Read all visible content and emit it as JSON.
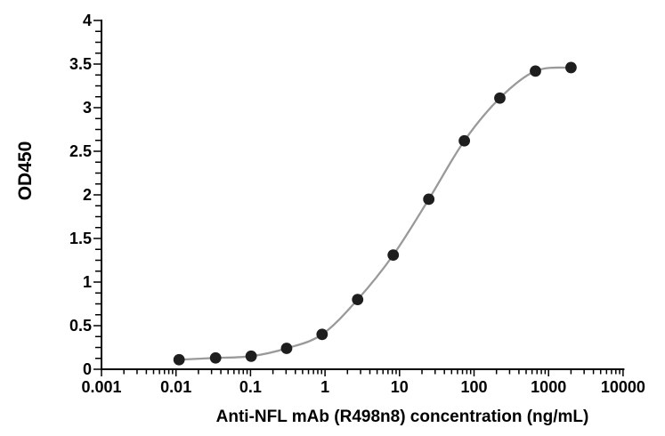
{
  "figure": {
    "background_color": "#ffffff",
    "axis_color": "#000000",
    "text_color": "#000000",
    "curve_color": "#9a9a9a",
    "marker_color": "#1e1e1e"
  },
  "chart_data": {
    "type": "scatter",
    "subtype": "dose-response-fit-curve",
    "title": "",
    "xlabel": "Anti-NFL mAb (R498n8) concentration (ng/mL)",
    "ylabel": "OD450",
    "x_scale": "log10",
    "xlim": [
      0.001,
      10000
    ],
    "ylim": [
      0,
      4
    ],
    "x_tick_values": [
      0.001,
      0.01,
      0.1,
      1,
      10,
      100,
      1000,
      10000
    ],
    "x_tick_labels": [
      "0.001",
      "0.01",
      "0.1",
      "1",
      "10",
      "100",
      "1000",
      "10000"
    ],
    "y_tick_values": [
      0,
      0.5,
      1,
      1.5,
      2,
      2.5,
      3,
      3.5,
      4
    ],
    "y_tick_labels": [
      "0",
      "0.5",
      "1",
      "1.5",
      "2",
      "2.5",
      "3",
      "3.5",
      "4"
    ],
    "y_minor_tick_step": 0.125,
    "x_minor_ticks": "log-decades-2-9",
    "grid": false,
    "legend": false,
    "series": [
      {
        "x": [
          0.011,
          0.034,
          0.102,
          0.305,
          0.914,
          2.74,
          8.23,
          24.7,
          74.1,
          222,
          667,
          2000
        ],
        "y": [
          0.11,
          0.13,
          0.15,
          0.24,
          0.4,
          0.8,
          1.31,
          1.95,
          2.62,
          3.11,
          3.42,
          3.46
        ],
        "marker": "filled-circle",
        "line": "smooth"
      }
    ]
  }
}
